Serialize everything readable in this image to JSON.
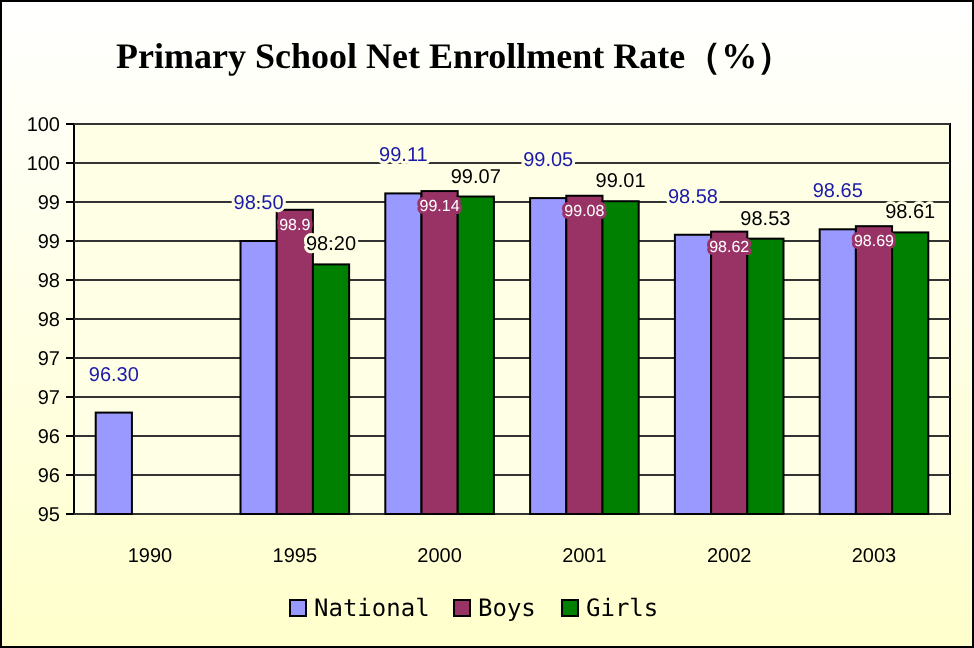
{
  "chart_data": {
    "type": "bar",
    "title": "Primary School Net Enrollment Rate（%）",
    "categories": [
      "1990",
      "1995",
      "2000",
      "2001",
      "2002",
      "2003"
    ],
    "series": [
      {
        "name": "National",
        "color": "#9999ff",
        "values": [
          96.3,
          98.5,
          99.11,
          99.05,
          98.58,
          98.65
        ],
        "value_labels": [
          "96.30",
          "98.50",
          "99.11",
          "99.05",
          "98.58",
          "98.65"
        ]
      },
      {
        "name": "Boys",
        "color": "#993366",
        "values": [
          null,
          98.9,
          99.14,
          99.08,
          98.62,
          98.69
        ],
        "value_labels": [
          null,
          "98.9",
          "99.14",
          "99.08",
          "98.62",
          "98.69"
        ]
      },
      {
        "name": "Girls",
        "color": "#008000",
        "values": [
          null,
          98.2,
          99.07,
          99.01,
          98.53,
          98.61
        ],
        "value_labels": [
          null,
          "98.20",
          "99.07",
          "99.01",
          "98.53",
          "98.61"
        ]
      }
    ],
    "ylim": [
      95,
      100
    ],
    "yticks": [
      95,
      {
        "value": 95.5,
        "label": "96"
      },
      96,
      {
        "value": 96.5,
        "label": "97"
      },
      97,
      {
        "value": 97.5,
        "label": "98"
      },
      98,
      {
        "value": 98.5,
        "label": "99"
      },
      99,
      {
        "value": 99.5,
        "label": "100"
      },
      100
    ],
    "grid": "y",
    "legend": "bottom"
  }
}
